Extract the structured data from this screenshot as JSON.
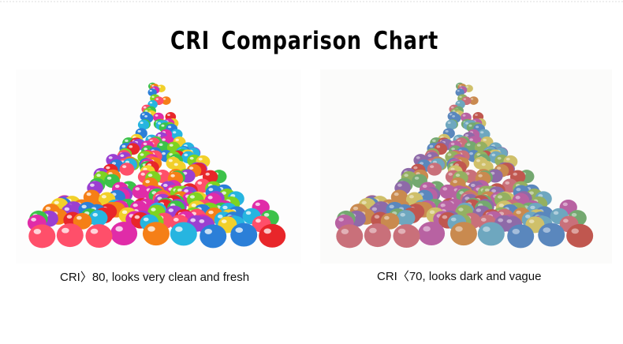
{
  "title": "CRI Comparison Chart",
  "panels": [
    {
      "caption": "CRI〉80, looks very clean and fresh"
    },
    {
      "caption": "CRI〈70, looks dark and vague"
    }
  ]
}
